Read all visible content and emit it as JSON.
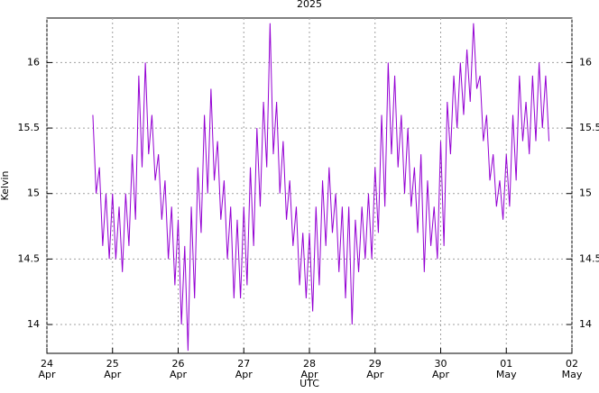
{
  "chart_data": {
    "type": "line",
    "title": "2025",
    "x_label": "UTC",
    "y_label": "Kelvin",
    "xlim": [
      24,
      32
    ],
    "xticks": [
      {
        "value": 24,
        "label": "24 Apr"
      },
      {
        "value": 25,
        "label": "25 Apr"
      },
      {
        "value": 26,
        "label": "26 Apr"
      },
      {
        "value": 27,
        "label": "27 Apr"
      },
      {
        "value": 28,
        "label": "28 Apr"
      },
      {
        "value": 29,
        "label": "29 Apr"
      },
      {
        "value": 30,
        "label": "30 Apr"
      },
      {
        "value": 31,
        "label": "01 May"
      },
      {
        "value": 32,
        "label": "02 May"
      }
    ],
    "ylim": [
      13.78,
      16.34
    ],
    "yticks": [
      14,
      14.5,
      15,
      15.5,
      16
    ],
    "grid": true,
    "mirror_y_axis": true,
    "x": [
      24.7,
      24.75,
      24.8,
      24.85,
      24.9,
      24.95,
      25.0,
      25.05,
      25.1,
      25.15,
      25.2,
      25.25,
      25.3,
      25.35,
      25.4,
      25.45,
      25.5,
      25.55,
      25.6,
      25.65,
      25.7,
      25.75,
      25.8,
      25.85,
      25.9,
      25.95,
      26.0,
      26.05,
      26.1,
      26.15,
      26.2,
      26.25,
      26.3,
      26.35,
      26.4,
      26.45,
      26.5,
      26.55,
      26.6,
      26.65,
      26.7,
      26.75,
      26.8,
      26.85,
      26.9,
      26.95,
      27.0,
      27.05,
      27.1,
      27.15,
      27.2,
      27.25,
      27.3,
      27.35,
      27.4,
      27.45,
      27.5,
      27.55,
      27.6,
      27.65,
      27.7,
      27.75,
      27.8,
      27.85,
      27.9,
      27.95,
      28.0,
      28.05,
      28.1,
      28.15,
      28.2,
      28.25,
      28.3,
      28.35,
      28.4,
      28.45,
      28.5,
      28.55,
      28.6,
      28.65,
      28.7,
      28.75,
      28.8,
      28.85,
      28.9,
      28.95,
      29.0,
      29.05,
      29.1,
      29.15,
      29.2,
      29.25,
      29.3,
      29.35,
      29.4,
      29.45,
      29.5,
      29.55,
      29.6,
      29.65,
      29.7,
      29.75,
      29.8,
      29.85,
      29.9,
      29.95,
      30.0,
      30.05,
      30.1,
      30.15,
      30.2,
      30.25,
      30.3,
      30.35,
      30.4,
      30.45,
      30.5,
      30.55,
      30.6,
      30.65,
      30.7,
      30.75,
      30.8,
      30.85,
      30.9,
      30.95,
      31.0,
      31.05,
      31.1,
      31.15,
      31.2,
      31.25,
      31.3,
      31.35,
      31.4,
      31.45,
      31.5,
      31.55,
      31.6,
      31.65
    ],
    "series": [
      {
        "name": "Kelvin",
        "color": "#9400d3",
        "values": [
          15.6,
          15.0,
          15.2,
          14.6,
          15.0,
          14.5,
          15.0,
          14.5,
          14.9,
          14.4,
          15.0,
          14.6,
          15.3,
          14.8,
          15.9,
          15.2,
          16.0,
          15.3,
          15.6,
          15.1,
          15.3,
          14.8,
          15.1,
          14.5,
          14.9,
          14.3,
          14.8,
          14.0,
          14.6,
          13.8,
          14.9,
          14.2,
          15.2,
          14.7,
          15.6,
          15.0,
          15.8,
          15.1,
          15.4,
          14.8,
          15.1,
          14.5,
          14.9,
          14.2,
          14.8,
          14.2,
          14.9,
          14.3,
          15.2,
          14.6,
          15.5,
          14.9,
          15.7,
          15.2,
          16.3,
          15.3,
          15.7,
          15.0,
          15.4,
          14.8,
          15.1,
          14.6,
          14.9,
          14.3,
          14.7,
          14.2,
          14.7,
          14.1,
          14.9,
          14.3,
          15.1,
          14.6,
          15.2,
          14.7,
          15.0,
          14.4,
          14.9,
          14.2,
          14.9,
          14.0,
          14.8,
          14.4,
          14.9,
          14.5,
          15.0,
          14.5,
          15.2,
          14.7,
          15.6,
          14.9,
          16.0,
          15.3,
          15.9,
          15.2,
          15.6,
          15.0,
          15.5,
          14.9,
          15.2,
          14.7,
          15.3,
          14.4,
          15.1,
          14.6,
          14.9,
          14.5,
          15.4,
          14.6,
          15.7,
          15.3,
          15.9,
          15.5,
          16.0,
          15.6,
          16.1,
          15.7,
          16.3,
          15.8,
          15.9,
          15.4,
          15.6,
          15.1,
          15.3,
          14.9,
          15.1,
          14.8,
          15.3,
          14.9,
          15.6,
          15.1,
          15.9,
          15.4,
          15.7,
          15.3,
          15.9,
          15.4,
          16.0,
          15.5,
          15.9,
          15.4
        ]
      }
    ]
  }
}
